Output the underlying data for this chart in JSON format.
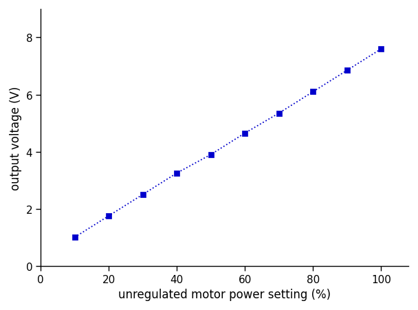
{
  "x": [
    10,
    20,
    30,
    40,
    50,
    60,
    70,
    80,
    90,
    100
  ],
  "y": [
    1.0,
    1.75,
    2.5,
    3.25,
    3.9,
    4.65,
    5.35,
    6.1,
    6.85,
    7.6
  ],
  "line_color": "#0000CC",
  "marker_color": "#0000CC",
  "marker": "s",
  "marker_size": 6,
  "line_style": ":",
  "line_width": 1.3,
  "xlabel": "unregulated motor power setting (%)",
  "ylabel": "output voltage (V)",
  "xlim": [
    0,
    108
  ],
  "ylim": [
    0,
    9
  ],
  "xticks": [
    0,
    20,
    40,
    60,
    80,
    100
  ],
  "yticks": [
    0,
    2,
    4,
    6,
    8
  ],
  "xlabel_fontsize": 12,
  "ylabel_fontsize": 12,
  "tick_fontsize": 11,
  "text_color": "#000000",
  "spine_color": "#000000",
  "background_color": "#ffffff"
}
